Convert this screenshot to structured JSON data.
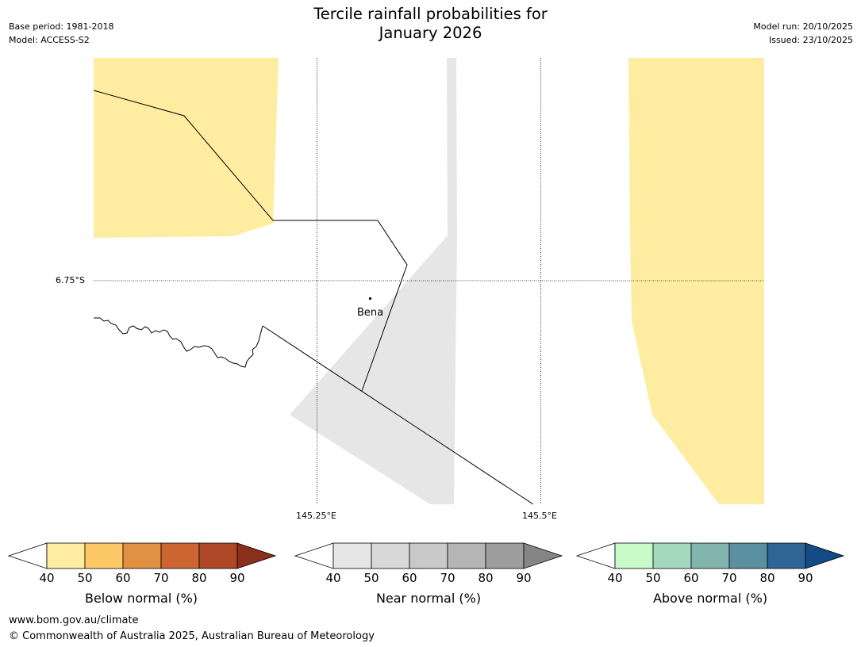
{
  "header": {
    "title_line1": "Tercile rainfall probabilities for",
    "title_line2": "January 2026",
    "base_period": "Base period: 1981-2018",
    "model": "Model: ACCESS-S2",
    "model_run": "Model run: 20/10/2025",
    "issued": "Issued: 23/10/2025"
  },
  "map": {
    "lat_label": "6.75°S",
    "lon_labels": [
      "145.25°E",
      "145.5°E"
    ],
    "place_name": "Bena",
    "colors": {
      "below_40_50": "#feeda0",
      "near_40_50": "#e6e6e6",
      "border": "#000000",
      "grid": "#000000"
    }
  },
  "colorbars": [
    {
      "label": "Below normal (%)",
      "ticks": [
        "40",
        "50",
        "60",
        "70",
        "80",
        "90"
      ],
      "colors": [
        "#feeda0",
        "#fdc966",
        "#e09142",
        "#cc6532",
        "#ad4726",
        "#8c2e1c"
      ]
    },
    {
      "label": "Near normal (%)",
      "ticks": [
        "40",
        "50",
        "60",
        "70",
        "80",
        "90"
      ],
      "colors": [
        "#e6e6e6",
        "#d8d8d8",
        "#c9c9c9",
        "#b5b5b5",
        "#9e9e9e",
        "#858585"
      ]
    },
    {
      "label": "Above normal (%)",
      "ticks": [
        "40",
        "50",
        "60",
        "70",
        "80",
        "90"
      ],
      "colors": [
        "#c8fbc8",
        "#a4d9bd",
        "#82b5ad",
        "#5a90a0",
        "#2f6496",
        "#144a85"
      ]
    }
  ],
  "footer": {
    "url": "www.bom.gov.au/climate",
    "copyright": "© Commonwealth of Australia 2025, Australian Bureau of Meteorology"
  }
}
